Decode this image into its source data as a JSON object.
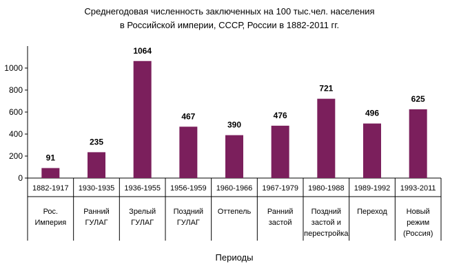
{
  "chart_data": {
    "type": "bar",
    "title": "Среднегодовая численность заключенных на 100 тыс.чел. населения в Российской империи, СССР, России в 1882-2011 гг.",
    "title_lines": [
      "Среднегодовая численность заключенных на 100 тыс.чел. населения",
      "в Российской империи, СССР, России в 1882-2011 гг."
    ],
    "xlabel": "Периоды",
    "ylabel": "",
    "ylim": [
      0,
      1200
    ],
    "yticks": [
      0,
      200,
      400,
      600,
      800,
      1000
    ],
    "grid": false,
    "legend": "none",
    "bar_color": "#7B1F5C",
    "categories": [
      {
        "years": "1882-1917",
        "name_lines": [
          "Рос.",
          "Империя"
        ]
      },
      {
        "years": "1930-1935",
        "name_lines": [
          "Ранний",
          "ГУЛАГ"
        ]
      },
      {
        "years": "1936-1955",
        "name_lines": [
          "Зрелый",
          "ГУЛАГ"
        ]
      },
      {
        "years": "1956-1959",
        "name_lines": [
          "Поздний",
          "ГУЛАГ"
        ]
      },
      {
        "years": "1960-1966",
        "name_lines": [
          "Оттепель"
        ]
      },
      {
        "years": "1967-1979",
        "name_lines": [
          "Ранний",
          "застой"
        ]
      },
      {
        "years": "1980-1988",
        "name_lines": [
          "Поздний",
          "застой и",
          "перестройка"
        ]
      },
      {
        "years": "1989-1992",
        "name_lines": [
          "Переход"
        ]
      },
      {
        "years": "1993-2011",
        "name_lines": [
          "Новый",
          "режим",
          "(Россия)"
        ]
      }
    ],
    "values": [
      91,
      235,
      1064,
      467,
      390,
      476,
      721,
      496,
      625
    ]
  }
}
